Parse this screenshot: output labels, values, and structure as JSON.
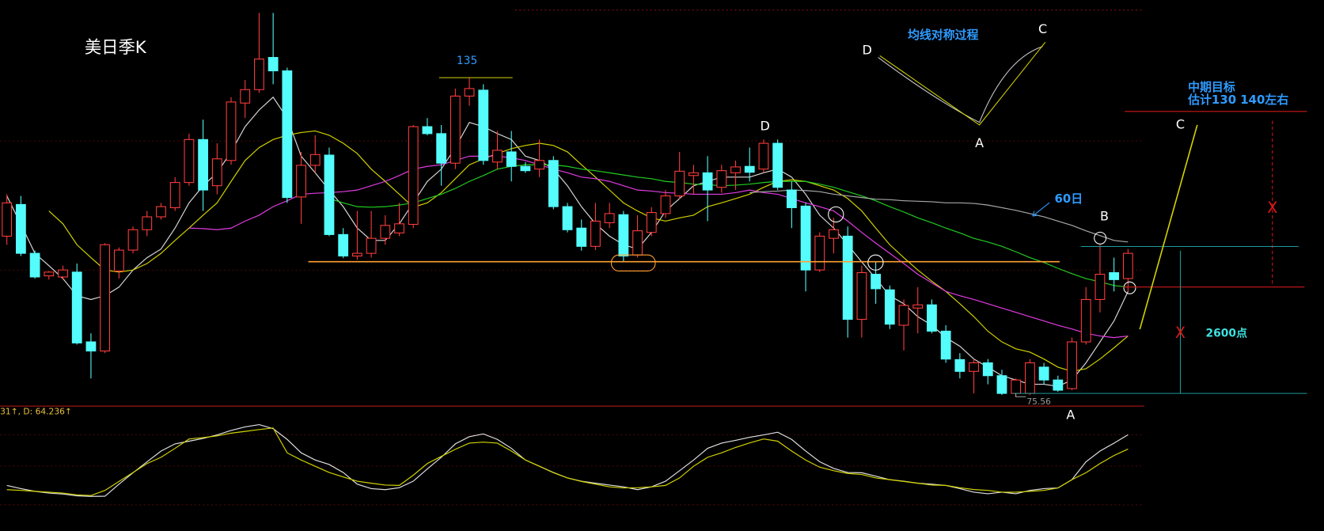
{
  "chart_data": [
    {
      "type": "candlestick",
      "title": "美日季K",
      "ylim": [
        74,
        149.5
      ],
      "up_color": "#ff3c3c",
      "down_color": "#54fcfc",
      "open": [
        105.5,
        111.4,
        102.3,
        98.1,
        97.9,
        98.8,
        85.8,
        84.1,
        99.0,
        102.9,
        106.7,
        109.1,
        110.8,
        115.5,
        123.5,
        114.9,
        119.6,
        130.3,
        132.8,
        138.8,
        136.3,
        112.8,
        118.7,
        120.6,
        105.8,
        101.8,
        102.3,
        105.1,
        106.1,
        107.7,
        125.9,
        124.6,
        119.1,
        131.6,
        132.7,
        119.3,
        121.2,
        118.5,
        118.0,
        119.6,
        111.0,
        107.0,
        103.6,
        108.0,
        109.5,
        102.0,
        106.2,
        109.7,
        113.0,
        116.8,
        117.3,
        114.6,
        117.3,
        118.5,
        118.0,
        122.8,
        114.1,
        111.1,
        99.2,
        105.1,
        105.5,
        90.0,
        98.4,
        95.5,
        88.9,
        92.1,
        92.7,
        87.8,
        82.5,
        80.3,
        81.9,
        79.5,
        76.2,
        76.2,
        81.1,
        78.7,
        77.1,
        85.8,
        93.7,
        98.7,
        97.6
      ],
      "high": [
        113.3,
        113.0,
        102.8,
        99.0,
        100.0,
        100.4,
        87.4,
        104.2,
        103.4,
        107.3,
        110.2,
        111.7,
        116.5,
        124.6,
        127.2,
        122.8,
        131.4,
        134.6,
        147.1,
        147.1,
        136.9,
        121.2,
        124.3,
        122.0,
        107.0,
        110.2,
        110.2,
        109.4,
        111.7,
        126.2,
        127.5,
        126.2,
        133.0,
        135,
        133.8,
        125.1,
        125.1,
        119.3,
        123.5,
        120.4,
        111.7,
        108.6,
        111.7,
        111.7,
        110.2,
        109.4,
        110.9,
        114.1,
        121.2,
        118.8,
        120.4,
        118.8,
        119.6,
        122.0,
        123.5,
        123.5,
        115.7,
        111.7,
        106.2,
        108.9,
        107.3,
        100.0,
        100.7,
        96.3,
        93.7,
        96.0,
        93.7,
        88.9,
        83.7,
        82.6,
        82.6,
        80.6,
        79.0,
        82.6,
        81.9,
        79.5,
        86.6,
        96.0,
        103.9,
        101.5,
        103.1
      ],
      "low": [
        103.9,
        101.8,
        97.6,
        97.4,
        97.4,
        85.3,
        79.0,
        83.7,
        97.6,
        102.3,
        105.5,
        108.6,
        110.2,
        114.9,
        110.2,
        113.3,
        118.8,
        127.5,
        132.2,
        133.8,
        111.7,
        107.8,
        117.3,
        105.5,
        101.4,
        101.1,
        101.5,
        103.9,
        105.5,
        107.0,
        124.3,
        114.9,
        118.0,
        129.8,
        118.8,
        118.0,
        115.7,
        117.3,
        116.5,
        110.5,
        106.2,
        102.8,
        102.9,
        107.0,
        100.7,
        101.5,
        105.5,
        108.9,
        112.4,
        113.3,
        108.3,
        113.6,
        114.1,
        115.7,
        117.3,
        114.1,
        107.0,
        95.2,
        98.8,
        102.3,
        86.6,
        86.6,
        92.9,
        88.2,
        84.2,
        87.4,
        87.4,
        81.9,
        79.0,
        76.2,
        77.9,
        75.9,
        75.56,
        75.9,
        77.9,
        76.5,
        76.8,
        85.3,
        91.3,
        95.2,
        95.2
      ],
      "close": [
        111.7,
        102.3,
        97.9,
        98.8,
        99.2,
        85.6,
        84.1,
        103.9,
        102.9,
        106.7,
        109.1,
        111.0,
        115.5,
        123.5,
        114.1,
        119.9,
        130.5,
        132.8,
        138.5,
        136.3,
        112.7,
        118.7,
        120.7,
        105.8,
        101.8,
        102.3,
        105.1,
        107.5,
        107.8,
        125.9,
        124.6,
        119.1,
        131.6,
        133.0,
        119.6,
        121.5,
        118.5,
        117.7,
        119.6,
        111.0,
        106.7,
        103.6,
        108.3,
        109.7,
        101.8,
        106.5,
        109.9,
        113.0,
        117.6,
        117.3,
        114.1,
        117.7,
        118.4,
        117.4,
        122.8,
        114.6,
        110.8,
        99.2,
        105.5,
        106.7,
        90.0,
        98.7,
        95.7,
        89.1,
        92.6,
        92.7,
        87.8,
        82.6,
        80.3,
        81.9,
        79.5,
        76.2,
        78.7,
        81.9,
        78.7,
        76.8,
        85.8,
        93.7,
        98.4,
        97.4,
        102.3
      ],
      "series": [
        {
          "color": "#d8d8d8",
          "values": [
            113.0,
            107.7,
            102.3,
            100.0,
            97.6,
            94.4,
            93.7,
            94.4,
            96.0,
            99.2,
            101.5,
            103.1,
            107.0,
            111.7,
            114.9,
            117.3,
            121.2,
            125.9,
            129.0,
            131.4,
            127.5,
            120.4,
            117.3,
            114.1,
            111.0,
            107.0,
            104.7,
            104.7,
            107.8,
            111.7,
            115.7,
            118.0,
            122.0,
            126.7,
            125.9,
            124.6,
            123.5,
            120.4,
            119.6,
            118.0,
            114.9,
            111.0,
            107.8,
            105.5,
            103.9,
            103.1,
            106.2,
            110.2,
            112.5,
            114.9,
            115.7,
            116.5,
            116.5,
            116.5,
            117.3,
            118.0,
            116.5,
            113.3,
            109.4,
            107.0,
            103.9,
            100.7,
            97.6,
            94.4,
            92.9,
            90.5,
            88.9,
            86.6,
            85.0,
            82.6,
            81.1,
            79.5,
            78.7,
            77.9,
            77.9,
            77.5,
            78.7,
            81.9,
            85.8,
            89.7,
            95.2
          ]
        },
        {
          "color": "#d2d200",
          "values": [
            null,
            null,
            null,
            110.2,
            107.8,
            103.9,
            101.5,
            99.2,
            98.8,
            99.2,
            100.4,
            102.3,
            104.7,
            107.0,
            109.4,
            111.7,
            115.7,
            119.6,
            122.0,
            123.5,
            124.3,
            124.8,
            125.1,
            124.3,
            122.8,
            120.9,
            118.0,
            115.7,
            113.3,
            110.9,
            111.7,
            113.6,
            116.2,
            118.8,
            119.9,
            120.9,
            121.8,
            122.4,
            122.8,
            122.4,
            121.2,
            118.8,
            116.5,
            114.1,
            111.7,
            110.2,
            108.9,
            108.3,
            108.9,
            109.4,
            111.0,
            111.7,
            112.5,
            113.3,
            114.6,
            115.7,
            116.0,
            115.7,
            114.9,
            114.1,
            112.5,
            110.2,
            107.0,
            103.9,
            101.5,
            99.2,
            97.1,
            95.2,
            92.9,
            90.5,
            87.8,
            85.8,
            84.5,
            83.9,
            82.6,
            81.1,
            80.3,
            80.8,
            82.6,
            84.7,
            86.9
          ]
        },
        {
          "color": "#e23ce2",
          "values": [
            null,
            null,
            null,
            null,
            null,
            null,
            null,
            null,
            null,
            null,
            null,
            null,
            null,
            107.0,
            106.9,
            106.7,
            107.0,
            108.3,
            109.4,
            111.0,
            112.1,
            113.3,
            113.5,
            113.6,
            113.8,
            114.1,
            114.9,
            115.7,
            116.8,
            118.0,
            118.5,
            118.8,
            119.6,
            120.4,
            120.4,
            120.4,
            120.1,
            119.6,
            118.8,
            118.0,
            117.3,
            116.5,
            116.2,
            115.7,
            114.9,
            114.1,
            113.9,
            113.6,
            113.5,
            113.3,
            113.3,
            113.3,
            113.6,
            114.1,
            113.6,
            113.3,
            112.5,
            111.7,
            111.0,
            110.2,
            108.3,
            106.2,
            104.2,
            102.3,
            100.4,
            98.4,
            96.8,
            95.2,
            94.4,
            93.7,
            92.9,
            92.1,
            91.3,
            90.5,
            89.7,
            88.9,
            88.2,
            87.4,
            86.9,
            86.6,
            86.9
          ]
        },
        {
          "color": "#22cc22",
          "values": [
            null,
            null,
            null,
            null,
            null,
            null,
            null,
            null,
            null,
            null,
            null,
            null,
            null,
            null,
            null,
            null,
            null,
            null,
            null,
            null,
            null,
            null,
            null,
            112.5,
            111.7,
            111.0,
            110.9,
            111.0,
            111.3,
            111.7,
            112.5,
            113.3,
            114.4,
            115.7,
            116.8,
            118.0,
            118.5,
            118.8,
            118.8,
            118.8,
            118.5,
            118.0,
            117.7,
            117.3,
            116.9,
            116.5,
            116.2,
            115.7,
            115.5,
            115.2,
            115.1,
            114.9,
            115.0,
            115.2,
            115.5,
            115.7,
            115.7,
            115.7,
            115.2,
            114.6,
            113.8,
            113.0,
            112.1,
            111.0,
            110.0,
            108.9,
            108.0,
            107.0,
            106.1,
            105.1,
            104.4,
            103.6,
            102.6,
            101.5,
            100.6,
            99.5,
            98.5,
            97.6,
            97.0,
            96.3,
            96.0
          ]
        },
        {
          "color": "#a8a8a8",
          "values": [
            null,
            null,
            null,
            null,
            null,
            null,
            null,
            null,
            null,
            null,
            null,
            null,
            null,
            null,
            null,
            null,
            null,
            null,
            null,
            null,
            null,
            null,
            null,
            null,
            null,
            null,
            null,
            null,
            null,
            null,
            null,
            null,
            null,
            null,
            null,
            null,
            null,
            null,
            null,
            null,
            null,
            null,
            null,
            null,
            null,
            null,
            null,
            null,
            null,
            null,
            null,
            null,
            null,
            113.6,
            113.8,
            113.9,
            114.1,
            114.0,
            113.8,
            113.3,
            113.0,
            112.7,
            112.4,
            112.3,
            112.1,
            112.0,
            111.9,
            111.7,
            111.7,
            111.6,
            111.3,
            110.8,
            110.3,
            109.7,
            109.1,
            108.3,
            107.5,
            106.5,
            105.6,
            104.7,
            104.4
          ]
        }
      ]
    },
    {
      "type": "line",
      "ylim": [
        0,
        113.2
      ],
      "header": "31↑, D: 64.236↑",
      "series": [
        {
          "color": "#e0e0e0",
          "values": [
            23.6,
            20,
            17,
            15,
            14,
            12,
            11.3,
            11.5,
            25,
            37.7,
            50,
            62,
            70,
            73,
            76,
            80,
            85,
            89,
            91.5,
            87,
            75,
            60,
            52,
            47,
            38,
            25,
            20,
            18.9,
            21,
            28.3,
            42,
            55,
            70,
            78,
            81.1,
            75,
            65,
            52,
            45,
            38,
            32,
            28.3,
            26,
            24,
            22,
            18.9,
            22,
            28.3,
            40,
            52,
            65,
            70.8,
            74,
            77.4,
            80,
            83,
            75,
            62,
            50,
            42.5,
            38,
            37.7,
            34,
            30,
            28.3,
            26,
            25,
            23.6,
            20,
            16,
            14.2,
            16,
            14.2,
            18,
            20,
            20.8,
            30,
            50,
            62,
            70.8,
            80.2
          ]
        },
        {
          "color": "#d2d200",
          "values": [
            18.9,
            18,
            17,
            16,
            15,
            13,
            12.3,
            18,
            28,
            38,
            48,
            55,
            65,
            75.5,
            77,
            79,
            82,
            84,
            86,
            87.7,
            60,
            52,
            45,
            38,
            33,
            28.3,
            26,
            24,
            23.6,
            35,
            48,
            56,
            64,
            70.8,
            72,
            70.8,
            62,
            52,
            45,
            37.7,
            32,
            28,
            25,
            22,
            20.8,
            21,
            22,
            23.6,
            32,
            45,
            55,
            60,
            66,
            71,
            75.5,
            73,
            62,
            51.9,
            44,
            40,
            37,
            35.8,
            32,
            30,
            28,
            26,
            24,
            23.6,
            21,
            19,
            18,
            16,
            16,
            17,
            18,
            20.8,
            30,
            37.7,
            48,
            57,
            64.236
          ]
        }
      ]
    }
  ],
  "annotations": {
    "high_label": "135",
    "ma_title": "均线对称过程",
    "mini_d": "D",
    "mini_c": "C",
    "mini_a": "A",
    "wave_d": "D",
    "ma60": "60日",
    "wave_b": "B",
    "target_1": "中期目标",
    "target_2": "估计130 140左右",
    "wave_c": "C",
    "x_upper": "X",
    "x_lower": "X",
    "points": "2600点",
    "wave_a": "A",
    "low_label": "75.56"
  }
}
